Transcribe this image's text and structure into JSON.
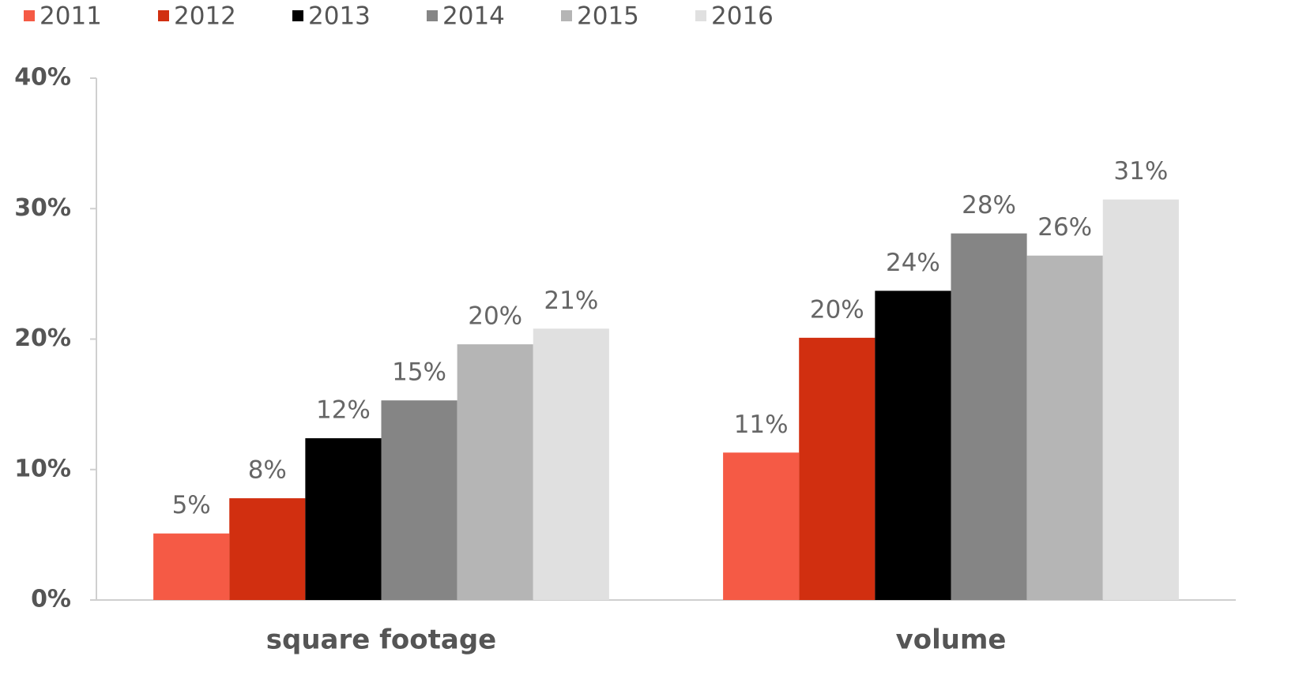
{
  "chart_data": {
    "type": "bar",
    "categories": [
      "square footage",
      "volume"
    ],
    "series": [
      {
        "name": "2011",
        "color": "#f55a45",
        "values": [
          5.1,
          11.3
        ],
        "value_labels": [
          "5%",
          "11%"
        ]
      },
      {
        "name": "2012",
        "color": "#d12f10",
        "values": [
          7.8,
          20.1
        ],
        "value_labels": [
          "8%",
          "20%"
        ]
      },
      {
        "name": "2013",
        "color": "#000000",
        "values": [
          12.4,
          23.7
        ],
        "value_labels": [
          "12%",
          "24%"
        ]
      },
      {
        "name": "2014",
        "color": "#858585",
        "values": [
          15.3,
          28.1
        ],
        "value_labels": [
          "15%",
          "28%"
        ]
      },
      {
        "name": "2015",
        "color": "#b5b5b5",
        "values": [
          19.6,
          26.4
        ],
        "value_labels": [
          "20%",
          "26%"
        ]
      },
      {
        "name": "2016",
        "color": "#e0e0e0",
        "values": [
          20.8,
          30.7
        ],
        "value_labels": [
          "21%",
          "31%"
        ]
      }
    ],
    "ylim": [
      0,
      40
    ],
    "yticks": [
      {
        "value": 0,
        "label": "0%"
      },
      {
        "value": 10,
        "label": "10%"
      },
      {
        "value": 20,
        "label": "20%"
      },
      {
        "value": 30,
        "label": "30%"
      },
      {
        "value": 40,
        "label": "40%"
      }
    ],
    "legend": "top-left"
  }
}
